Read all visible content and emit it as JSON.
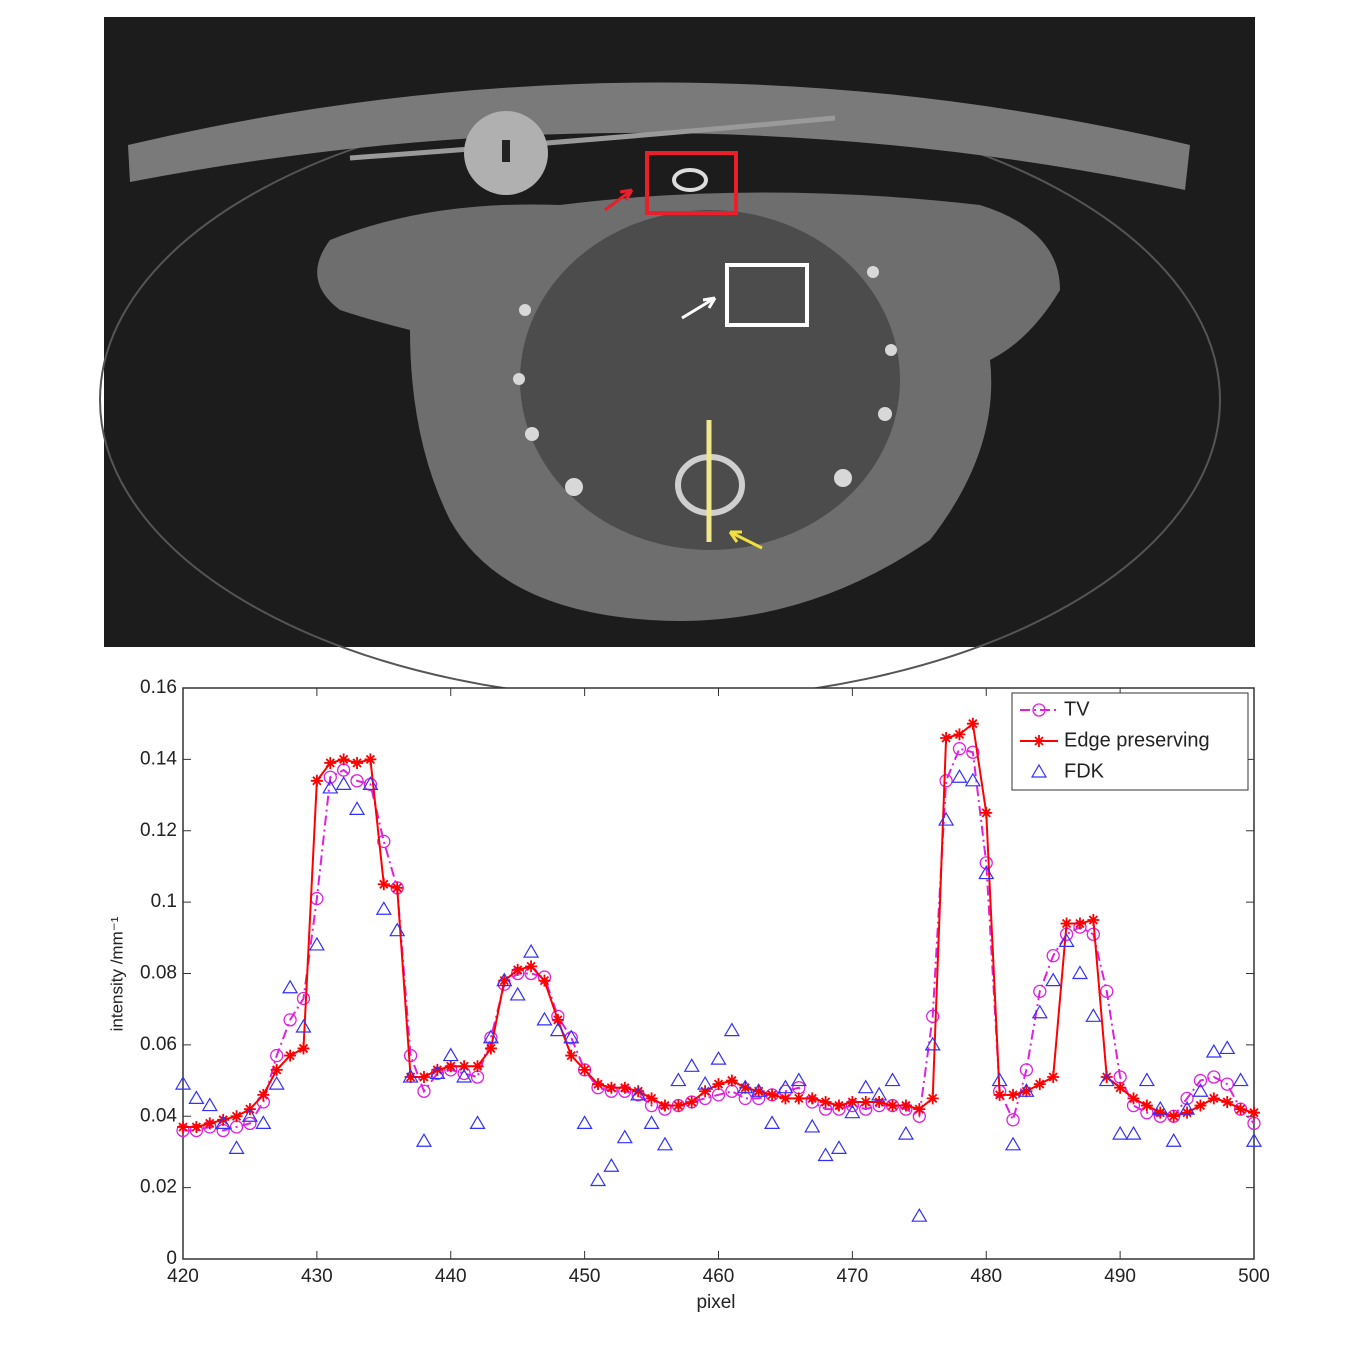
{
  "chart_data": {
    "type": "line",
    "xlabel": "pixel",
    "ylabel": "intensity /mm⁻¹",
    "x": [
      420,
      421,
      422,
      423,
      424,
      425,
      426,
      427,
      428,
      429,
      430,
      431,
      432,
      433,
      434,
      435,
      436,
      437,
      438,
      439,
      440,
      441,
      442,
      443,
      444,
      445,
      446,
      447,
      448,
      449,
      450,
      451,
      452,
      453,
      454,
      455,
      456,
      457,
      458,
      459,
      460,
      461,
      462,
      463,
      464,
      465,
      466,
      467,
      468,
      469,
      470,
      471,
      472,
      473,
      474,
      475,
      476,
      477,
      478,
      479,
      480,
      481,
      482,
      483,
      484,
      485,
      486,
      487,
      488,
      489,
      490,
      491,
      492,
      493,
      494,
      495,
      496,
      497,
      498,
      499,
      500
    ],
    "xlim": [
      420,
      500
    ],
    "xticks": [
      420,
      430,
      440,
      450,
      460,
      470,
      480,
      490,
      500
    ],
    "ylim": [
      0,
      0.16
    ],
    "yticks": [
      0,
      0.02,
      0.04,
      0.06,
      0.08,
      0.1,
      0.12,
      0.14,
      0.16
    ],
    "legend": "northeast",
    "series": [
      {
        "name": "TV",
        "color": "#e020e0",
        "marker": "circle",
        "line": "dashdot",
        "values": [
          0.036,
          0.036,
          0.037,
          0.036,
          0.037,
          0.038,
          0.044,
          0.057,
          0.067,
          0.073,
          0.101,
          0.135,
          0.137,
          0.134,
          0.133,
          0.117,
          0.104,
          0.057,
          0.047,
          0.052,
          0.053,
          0.052,
          0.051,
          0.062,
          0.077,
          0.08,
          0.08,
          0.079,
          0.068,
          0.062,
          0.053,
          0.048,
          0.047,
          0.047,
          0.046,
          0.043,
          0.042,
          0.043,
          0.044,
          0.045,
          0.046,
          0.047,
          0.045,
          0.045,
          0.046,
          0.047,
          0.048,
          0.044,
          0.042,
          0.042,
          0.043,
          0.042,
          0.043,
          0.043,
          0.042,
          0.04,
          0.068,
          0.134,
          0.143,
          0.142,
          0.111,
          0.047,
          0.039,
          0.053,
          0.075,
          0.085,
          0.091,
          0.093,
          0.091,
          0.075,
          0.051,
          0.043,
          0.041,
          0.04,
          0.04,
          0.045,
          0.05,
          0.051,
          0.049,
          0.042,
          0.038
        ]
      },
      {
        "name": "Edge preserving",
        "color": "#ff0000",
        "marker": "asterisk",
        "line": "solid",
        "values": [
          0.037,
          0.037,
          0.038,
          0.039,
          0.04,
          0.042,
          0.046,
          0.053,
          0.057,
          0.059,
          0.134,
          0.139,
          0.14,
          0.139,
          0.14,
          0.105,
          0.104,
          0.051,
          0.051,
          0.053,
          0.054,
          0.054,
          0.054,
          0.059,
          0.078,
          0.081,
          0.082,
          0.078,
          0.067,
          0.057,
          0.053,
          0.049,
          0.048,
          0.048,
          0.047,
          0.045,
          0.043,
          0.043,
          0.044,
          0.047,
          0.049,
          0.05,
          0.048,
          0.047,
          0.046,
          0.045,
          0.045,
          0.045,
          0.044,
          0.043,
          0.044,
          0.044,
          0.044,
          0.043,
          0.043,
          0.042,
          0.045,
          0.146,
          0.147,
          0.15,
          0.125,
          0.046,
          0.046,
          0.047,
          0.049,
          0.051,
          0.094,
          0.094,
          0.095,
          0.051,
          0.048,
          0.045,
          0.043,
          0.041,
          0.04,
          0.041,
          0.043,
          0.045,
          0.044,
          0.042,
          0.041
        ]
      },
      {
        "name": "FDK",
        "color": "#3030ff",
        "marker": "triangle",
        "line": "none",
        "values": [
          0.049,
          0.045,
          0.043,
          0.038,
          0.031,
          0.04,
          0.038,
          0.049,
          0.076,
          0.065,
          0.088,
          0.132,
          0.133,
          0.126,
          0.133,
          0.098,
          0.092,
          0.051,
          0.033,
          0.052,
          0.057,
          0.051,
          0.038,
          0.062,
          0.078,
          0.074,
          0.086,
          0.067,
          0.064,
          0.062,
          0.038,
          0.022,
          0.026,
          0.034,
          0.046,
          0.038,
          0.032,
          0.05,
          0.054,
          0.049,
          0.056,
          0.064,
          0.048,
          0.047,
          0.038,
          0.048,
          0.05,
          0.037,
          0.029,
          0.031,
          0.041,
          0.048,
          0.046,
          0.05,
          0.035,
          0.012,
          0.06,
          0.123,
          0.135,
          0.134,
          0.108,
          0.05,
          0.032,
          0.047,
          0.069,
          0.078,
          0.089,
          0.08,
          0.068,
          0.05,
          0.035,
          0.035,
          0.05,
          0.042,
          0.033,
          0.042,
          0.047,
          0.058,
          0.059,
          0.05,
          0.033
        ]
      }
    ]
  }
}
